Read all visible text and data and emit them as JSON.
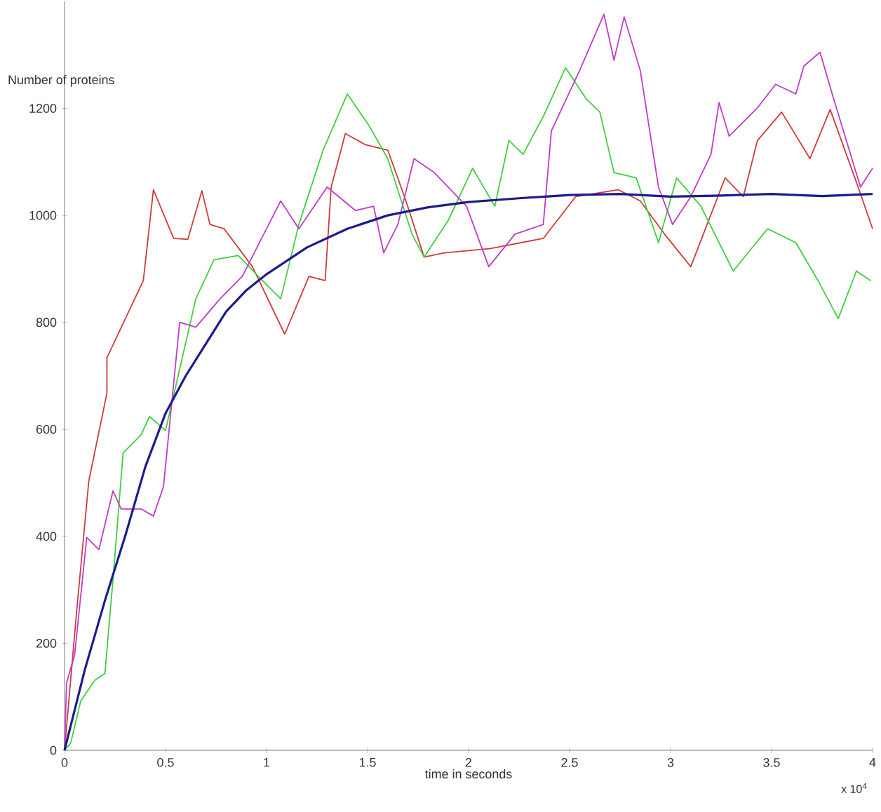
{
  "chart_data": {
    "type": "line",
    "ylabel": "Number of proteins",
    "xlabel": "time in seconds",
    "annotations": [
      "x 10$^{4}$"
    ],
    "xlim": [
      0,
      4
    ],
    "xticks": [
      0,
      0.5,
      1,
      1.5,
      2,
      2.5,
      3,
      3.5,
      4
    ],
    "ylim": [
      0,
      1400
    ],
    "yticks": [
      0,
      200,
      400,
      600,
      800,
      1000,
      1200
    ],
    "grid": false,
    "marker": "none",
    "line_style": "solid",
    "series": [
      {
        "color": "#d03a3a",
        "x": [
          0,
          0.06,
          0.12,
          0.21,
          0.21,
          0.33,
          0.39,
          0.44,
          0.54,
          0.61,
          0.68,
          0.72,
          0.79,
          0.93,
          1.09,
          1.21,
          1.29,
          1.32,
          1.39,
          1.49,
          1.6,
          1.69,
          1.78,
          1.88,
          2.11,
          2.37,
          2.53,
          2.74,
          2.85,
          2.97,
          3.1,
          3.27,
          3.36,
          3.43,
          3.55,
          3.69,
          3.79,
          3.92,
          4.0
        ],
        "values": [
          0,
          260,
          503,
          668,
          734,
          830,
          878,
          1048,
          957,
          955,
          1046,
          983,
          975,
          904,
          778,
          886,
          878,
          1053,
          1153,
          1132,
          1122,
          1027,
          922,
          930,
          938,
          957,
          1035,
          1048,
          1027,
          965,
          904,
          1070,
          1035,
          1140,
          1193,
          1106,
          1198,
          1062,
          975
        ]
      },
      {
        "color": "#3fcf3f",
        "x": [
          0,
          0.03,
          0.08,
          0.15,
          0.2,
          0.24,
          0.29,
          0.38,
          0.42,
          0.5,
          0.65,
          0.74,
          0.86,
          0.98,
          1.07,
          1.16,
          1.28,
          1.4,
          1.51,
          1.6,
          1.72,
          1.78,
          1.9,
          2.02,
          2.13,
          2.2,
          2.27,
          2.37,
          2.48,
          2.58,
          2.65,
          2.72,
          2.83,
          2.94,
          3.03,
          3.15,
          3.31,
          3.48,
          3.62,
          3.73,
          3.83,
          3.92,
          3.99
        ],
        "values": [
          0,
          13,
          92,
          131,
          144,
          320,
          556,
          590,
          624,
          598,
          844,
          917,
          925,
          878,
          844,
          983,
          1122,
          1227,
          1166,
          1106,
          965,
          922,
          991,
          1088,
          1017,
          1140,
          1114,
          1185,
          1276,
          1219,
          1193,
          1080,
          1070,
          949,
          1070,
          1017,
          896,
          975,
          949,
          878,
          807,
          896,
          878
        ]
      },
      {
        "color": "#c23ac8",
        "x": [
          0,
          0.01,
          0.05,
          0.11,
          0.17,
          0.24,
          0.28,
          0.38,
          0.44,
          0.49,
          0.57,
          0.65,
          0.77,
          0.88,
          1.0,
          1.07,
          1.16,
          1.3,
          1.44,
          1.53,
          1.58,
          1.65,
          1.73,
          1.83,
          1.99,
          2.1,
          2.23,
          2.37,
          2.41,
          2.55,
          2.67,
          2.72,
          2.77,
          2.85,
          2.94,
          3.01,
          3.1,
          3.2,
          3.24,
          3.29,
          3.43,
          3.52,
          3.62,
          3.66,
          3.74,
          3.8,
          3.87,
          3.94,
          4.0
        ],
        "values": [
          0,
          126,
          178,
          398,
          375,
          485,
          451,
          451,
          438,
          493,
          800,
          791,
          844,
          886,
          975,
          1027,
          975,
          1053,
          1009,
          1017,
          930,
          983,
          1106,
          1080,
          1017,
          904,
          965,
          983,
          1158,
          1271,
          1376,
          1290,
          1371,
          1271,
          1053,
          983,
          1035,
          1114,
          1211,
          1148,
          1201,
          1245,
          1227,
          1279,
          1305,
          1227,
          1140,
          1053,
          1088
        ]
      },
      {
        "color": "#1c1c8c",
        "x": [
          0,
          0.05,
          0.1,
          0.2,
          0.3,
          0.4,
          0.5,
          0.6,
          0.7,
          0.8,
          0.9,
          1.0,
          1.2,
          1.4,
          1.6,
          1.8,
          2.0,
          2.25,
          2.5,
          2.75,
          3.0,
          3.25,
          3.5,
          3.75,
          4.0
        ],
        "values": [
          0,
          75,
          150,
          280,
          400,
          530,
          630,
          700,
          760,
          820,
          860,
          890,
          940,
          975,
          1000,
          1015,
          1025,
          1032,
          1038,
          1040,
          1035,
          1037,
          1040,
          1036,
          1040
        ]
      }
    ]
  }
}
